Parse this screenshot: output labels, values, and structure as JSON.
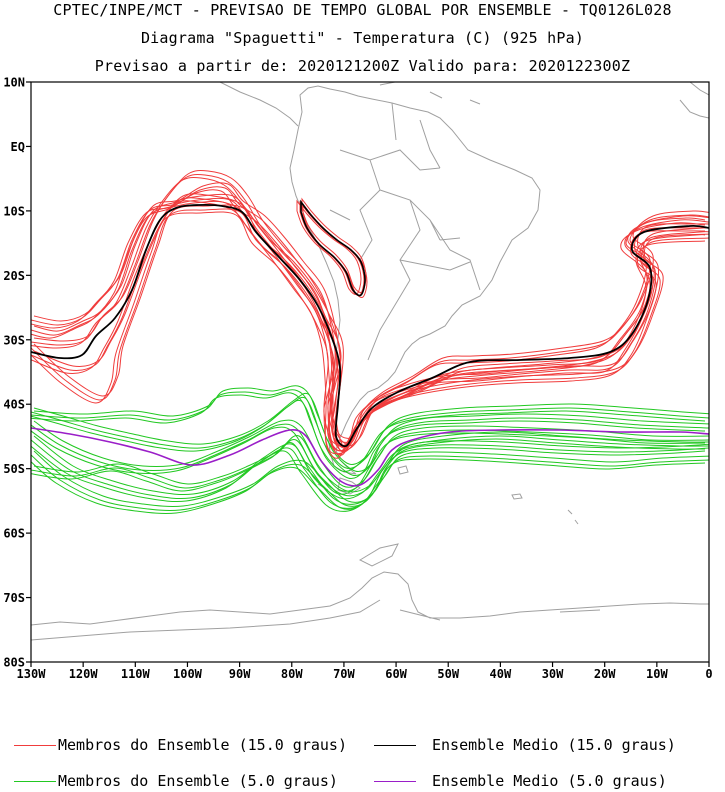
{
  "header": {
    "line1": "CPTEC/INPE/MCT - PREVISAO DE TEMPO GLOBAL POR ENSEMBLE - TQ0126L028",
    "line2": "Diagrama \"Spaguetti\" - Temperatura (C) (925 hPa)",
    "line3": "Previsao a partir de: 2020121200Z  Valido para: 2020122300Z"
  },
  "axes": {
    "lat_labels": [
      "10N",
      "EQ",
      "10S",
      "20S",
      "30S",
      "40S",
      "50S",
      "60S",
      "70S",
      "80S"
    ],
    "lon_labels": [
      "130W",
      "120W",
      "110W",
      "100W",
      "90W",
      "80W",
      "70W",
      "60W",
      "50W",
      "40W",
      "30W",
      "20W",
      "10W",
      "0"
    ]
  },
  "legend": {
    "members_15": "Membros do Ensemble (15.0 graus)",
    "mean_15": "Ensemble Medio (15.0 graus)",
    "members_5": "Membros do Ensemble (5.0 graus)",
    "mean_5": "Ensemble Medio (5.0 graus)"
  },
  "colors": {
    "members_15": "#f03c3c",
    "mean_15": "#000000",
    "members_5": "#22c822",
    "mean_5": "#9a1ec8",
    "coast": "#a0a0a0"
  }
}
